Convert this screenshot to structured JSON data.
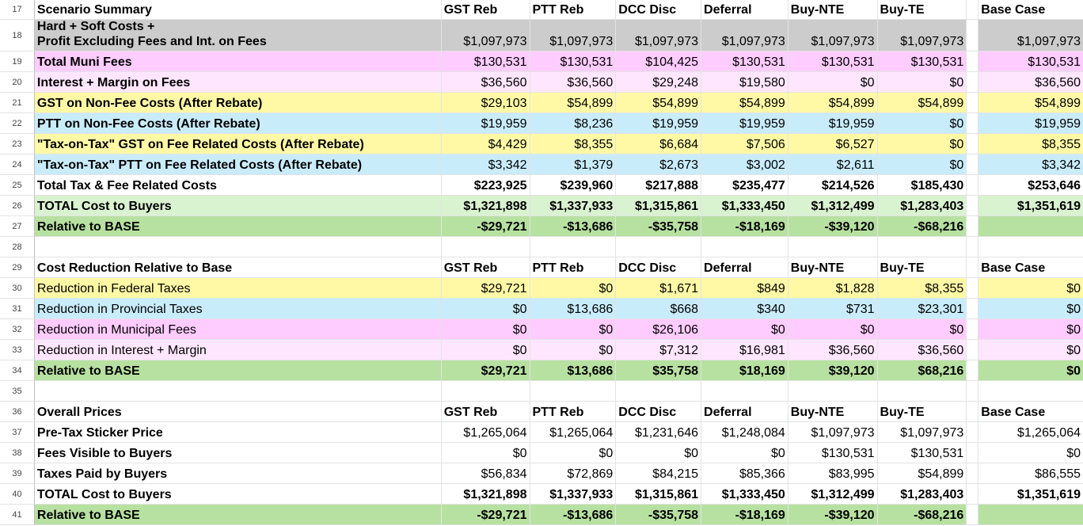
{
  "columns": [
    "GST Reb",
    "PTT Reb",
    "DCC Disc",
    "Deferral",
    "Buy-NTE",
    "Buy-TE"
  ],
  "base_col": "Base Case",
  "colors": {
    "gray": "#cccccc",
    "pink": "#ffccff",
    "light_pink": "#ffe6ff",
    "yellow": "#fff9a6",
    "blue": "#c9ecfb",
    "light_green": "#d9f2d0",
    "green": "#b7e1a1"
  },
  "rows": [
    {
      "n": "17",
      "h": 25,
      "type": "header",
      "label": "Scenario Summary",
      "cols": [
        "GST Reb",
        "PTT Reb",
        "DCC Disc",
        "Deferral",
        "Buy-NTE",
        "Buy-TE"
      ],
      "base": "Base Case"
    },
    {
      "n": "18",
      "h": 40,
      "type": "data2",
      "label": "Hard + Soft Costs +",
      "label2": "Profit Excluding Fees and Int. on Fees",
      "bold": true,
      "style": "gray",
      "vals": [
        "$1,097,973",
        "$1,097,973",
        "$1,097,973",
        "$1,097,973",
        "$1,097,973",
        "$1,097,973"
      ],
      "base": "$1,097,973",
      "vbold": false
    },
    {
      "n": "19",
      "h": 26,
      "type": "data",
      "label": "Total Muni Fees",
      "bold": true,
      "style": "pink",
      "vals": [
        "$130,531",
        "$130,531",
        "$104,425",
        "$130,531",
        "$130,531",
        "$130,531"
      ],
      "base": "$130,531",
      "vbold": false
    },
    {
      "n": "20",
      "h": 26,
      "type": "data",
      "label": "Interest + Margin on Fees",
      "bold": true,
      "style": "lpink",
      "vals": [
        "$36,560",
        "$36,560",
        "$29,248",
        "$19,580",
        "$0",
        "$0"
      ],
      "base": "$36,560",
      "vbold": false
    },
    {
      "n": "21",
      "h": 26,
      "type": "data",
      "label": "GST on Non-Fee Costs (After Rebate)",
      "bold": true,
      "style": "yel",
      "vals": [
        "$29,103",
        "$54,899",
        "$54,899",
        "$54,899",
        "$54,899",
        "$54,899"
      ],
      "base": "$54,899",
      "vbold": false
    },
    {
      "n": "22",
      "h": 26,
      "type": "data",
      "label": "PTT on Non-Fee Costs (After Rebate)",
      "bold": true,
      "style": "blue",
      "vals": [
        "$19,959",
        "$8,236",
        "$19,959",
        "$19,959",
        "$19,959",
        "$0"
      ],
      "base": "$19,959",
      "vbold": false
    },
    {
      "n": "23",
      "h": 26,
      "type": "data",
      "label": "\"Tax-on-Tax\" GST on Fee Related Costs (After Rebate)",
      "bold": true,
      "style": "yel",
      "vals": [
        "$4,429",
        "$8,355",
        "$6,684",
        "$7,506",
        "$6,527",
        "$0"
      ],
      "base": "$8,355",
      "vbold": false
    },
    {
      "n": "24",
      "h": 26,
      "type": "data",
      "label": "\"Tax-on-Tax\" PTT on Fee Related Costs (After Rebate)",
      "bold": true,
      "style": "blue",
      "vals": [
        "$3,342",
        "$1,379",
        "$2,673",
        "$3,002",
        "$2,611",
        "$0"
      ],
      "base": "$3,342",
      "vbold": false
    },
    {
      "n": "25",
      "h": 26,
      "type": "data",
      "label": "Total Tax & Fee Related Costs",
      "bold": true,
      "style": "w",
      "vals": [
        "$223,925",
        "$239,960",
        "$217,888",
        "$235,477",
        "$214,526",
        "$185,430"
      ],
      "base": "$253,646",
      "vbold": true
    },
    {
      "n": "26",
      "h": 26,
      "type": "data",
      "label": "TOTAL Cost to Buyers",
      "bold": true,
      "style": "lgreen",
      "vals": [
        "$1,321,898",
        "$1,337,933",
        "$1,315,861",
        "$1,333,450",
        "$1,312,499",
        "$1,283,403"
      ],
      "base": "$1,351,619",
      "vbold": true
    },
    {
      "n": "27",
      "h": 26,
      "type": "data",
      "label": "Relative to BASE",
      "bold": true,
      "style": "green",
      "vals": [
        "-$29,721",
        "-$13,686",
        "-$35,758",
        "-$18,169",
        "-$39,120",
        "-$68,216"
      ],
      "base": "",
      "vbold": true
    },
    {
      "n": "28",
      "h": 26,
      "type": "empty"
    },
    {
      "n": "29",
      "h": 26,
      "type": "header",
      "label": "Cost Reduction Relative to Base",
      "cols": [
        "GST Reb",
        "PTT Reb",
        "DCC Disc",
        "Deferral",
        "Buy-NTE",
        "Buy-TE"
      ],
      "base": "Base Case"
    },
    {
      "n": "30",
      "h": 26,
      "type": "data",
      "label": "Reduction in Federal Taxes",
      "bold": false,
      "style": "yel",
      "vals": [
        "$29,721",
        "$0",
        "$1,671",
        "$849",
        "$1,828",
        "$8,355"
      ],
      "base": "$0",
      "vbold": false
    },
    {
      "n": "31",
      "h": 26,
      "type": "data",
      "label": "Reduction in Provincial Taxes",
      "bold": false,
      "style": "blue",
      "vals": [
        "$0",
        "$13,686",
        "$668",
        "$340",
        "$731",
        "$23,301"
      ],
      "base": "$0",
      "vbold": false
    },
    {
      "n": "32",
      "h": 26,
      "type": "data",
      "label": "Reduction in Municipal Fees",
      "bold": false,
      "style": "pink",
      "vals": [
        "$0",
        "$0",
        "$26,106",
        "$0",
        "$0",
        "$0"
      ],
      "base": "$0",
      "vbold": false
    },
    {
      "n": "33",
      "h": 26,
      "type": "data",
      "label": "Reduction in Interest + Margin",
      "bold": false,
      "style": "lpink",
      "vals": [
        "$0",
        "$0",
        "$7,312",
        "$16,981",
        "$36,560",
        "$36,560"
      ],
      "base": "$0",
      "vbold": false
    },
    {
      "n": "34",
      "h": 26,
      "type": "data",
      "label": "Relative to BASE",
      "bold": true,
      "style": "green",
      "vals": [
        "$29,721",
        "$13,686",
        "$35,758",
        "$18,169",
        "$39,120",
        "$68,216"
      ],
      "base": "$0",
      "vbold": true
    },
    {
      "n": "35",
      "h": 26,
      "type": "empty"
    },
    {
      "n": "36",
      "h": 26,
      "type": "header",
      "label": "Overall Prices",
      "cols": [
        "GST Reb",
        "PTT Reb",
        "DCC Disc",
        "Deferral",
        "Buy-NTE",
        "Buy-TE"
      ],
      "base": "Base Case"
    },
    {
      "n": "37",
      "h": 26,
      "type": "data",
      "label": "Pre-Tax Sticker Price",
      "bold": true,
      "style": "w",
      "vals": [
        "$1,265,064",
        "$1,265,064",
        "$1,231,646",
        "$1,248,084",
        "$1,097,973",
        "$1,097,973"
      ],
      "base": "$1,265,064",
      "vbold": false
    },
    {
      "n": "38",
      "h": 26,
      "type": "data",
      "label": "Fees Visible to Buyers",
      "bold": true,
      "style": "w",
      "vals": [
        "$0",
        "$0",
        "$0",
        "$0",
        "$130,531",
        "$130,531"
      ],
      "base": "$0",
      "vbold": false
    },
    {
      "n": "39",
      "h": 26,
      "type": "data",
      "label": "Taxes Paid by Buyers",
      "bold": true,
      "style": "w",
      "vals": [
        "$56,834",
        "$72,869",
        "$84,215",
        "$85,366",
        "$83,995",
        "$54,899"
      ],
      "base": "$86,555",
      "vbold": false
    },
    {
      "n": "40",
      "h": 26,
      "type": "data",
      "label": "TOTAL Cost to Buyers",
      "bold": true,
      "style": "w",
      "vals": [
        "$1,321,898",
        "$1,337,933",
        "$1,315,861",
        "$1,333,450",
        "$1,312,499",
        "$1,283,403"
      ],
      "base": "$1,351,619",
      "vbold": true
    },
    {
      "n": "41",
      "h": 26,
      "type": "data",
      "label": "Relative to BASE",
      "bold": true,
      "style": "green",
      "vals": [
        "-$29,721",
        "-$13,686",
        "-$35,758",
        "-$18,169",
        "-$39,120",
        "-$68,216"
      ],
      "base": "",
      "vbold": true
    }
  ]
}
